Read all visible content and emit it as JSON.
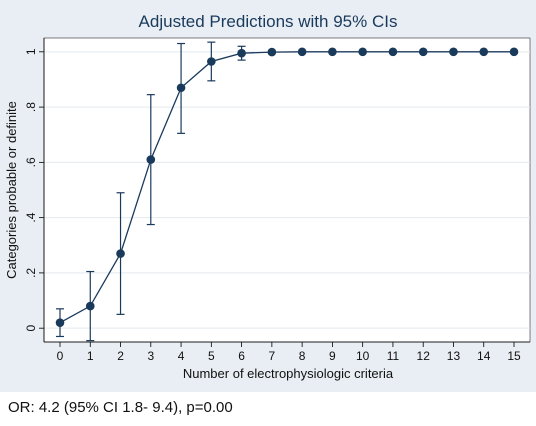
{
  "chart_data": {
    "type": "line",
    "title": "Adjusted Predictions with 95% CIs",
    "xlabel": "Number of electrophysiologic criteria",
    "ylabel": "Categories probable or definite",
    "x": [
      0,
      1,
      2,
      3,
      4,
      5,
      6,
      7,
      8,
      9,
      10,
      11,
      12,
      13,
      14,
      15
    ],
    "y": [
      0.02,
      0.08,
      0.27,
      0.61,
      0.87,
      0.965,
      0.995,
      0.999,
      1,
      1,
      1,
      1,
      1,
      1,
      1,
      1
    ],
    "ci_lower": [
      -0.03,
      -0.045,
      0.05,
      0.375,
      0.705,
      0.895,
      0.97,
      null,
      null,
      null,
      null,
      null,
      null,
      null,
      null,
      null
    ],
    "ci_upper": [
      0.07,
      0.205,
      0.49,
      0.845,
      1.03,
      1.035,
      1.02,
      null,
      null,
      null,
      null,
      null,
      null,
      null,
      null,
      null
    ],
    "xlim": [
      0,
      15
    ],
    "ylim": [
      -0.05,
      1.05
    ],
    "x_ticks": [
      "0",
      "1",
      "2",
      "3",
      "4",
      "5",
      "6",
      "7",
      "8",
      "9",
      "10",
      "11",
      "12",
      "13",
      "14",
      "15"
    ],
    "y_ticks": [
      {
        "value": 0,
        "label": "0"
      },
      {
        "value": 0.2,
        "label": ".2"
      },
      {
        "value": 0.4,
        "label": ".4"
      },
      {
        "value": 0.6,
        "label": ".6"
      },
      {
        "value": 0.8,
        "label": ".8"
      },
      {
        "value": 1,
        "label": "1"
      }
    ],
    "grid": "horizontal",
    "colors": {
      "series": "#1a3a5c",
      "grid": "#e3e9ee",
      "frame_bg": "#e8eef3",
      "plot_bg": "#ffffff",
      "title": "#1a3a5c"
    }
  },
  "caption": "OR: 4.2 (95% CI 1.8- 9.4), p=0.00"
}
